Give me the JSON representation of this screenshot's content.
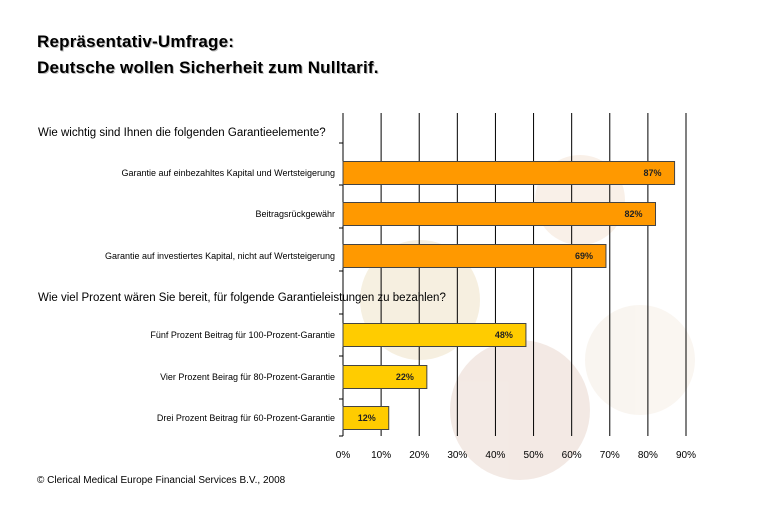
{
  "title_line1": "Repräsentativ-Umfrage:",
  "title_line2": "Deutsche wollen Sicherheit zum Nulltarif.",
  "footer": "© Clerical Medical Europe Financial Services B.V., 2008",
  "colors": {
    "orange": "#ff9900",
    "yellow": "#ffcc00",
    "grid": "#000000"
  },
  "chart_data": {
    "type": "bar",
    "orientation": "horizontal",
    "xlim": [
      0,
      90
    ],
    "x_ticks": [
      "0%",
      "10%",
      "20%",
      "30%",
      "40%",
      "50%",
      "60%",
      "70%",
      "80%",
      "90%"
    ],
    "grid": true,
    "groups": [
      {
        "question": "Wie wichtig sind Ihnen die folgenden Garantieelemente?",
        "color": "#ff9900",
        "categories": [
          "Garantie auf einbezahltes Kapital und Wertsteigerung",
          "Beitragsrückgewähr",
          "Garantie auf investiertes Kapital, nicht auf Wertsteigerung"
        ],
        "values": [
          87,
          82,
          69
        ],
        "labels": [
          "87%",
          "82%",
          "69%"
        ]
      },
      {
        "question": "Wie viel Prozent wären Sie bereit, für folgende Garantieleistungen zu bezahlen?",
        "color": "#ffcc00",
        "categories": [
          "Fünf Prozent Beitrag für 100-Prozent-Garantie",
          "Vier Prozent Beirag für 80-Prozent-Garantie",
          "Drei Prozent Beitrag für 60-Prozent-Garantie"
        ],
        "values": [
          48,
          22,
          12
        ],
        "labels": [
          "48%",
          "22%",
          "12%"
        ]
      }
    ]
  }
}
